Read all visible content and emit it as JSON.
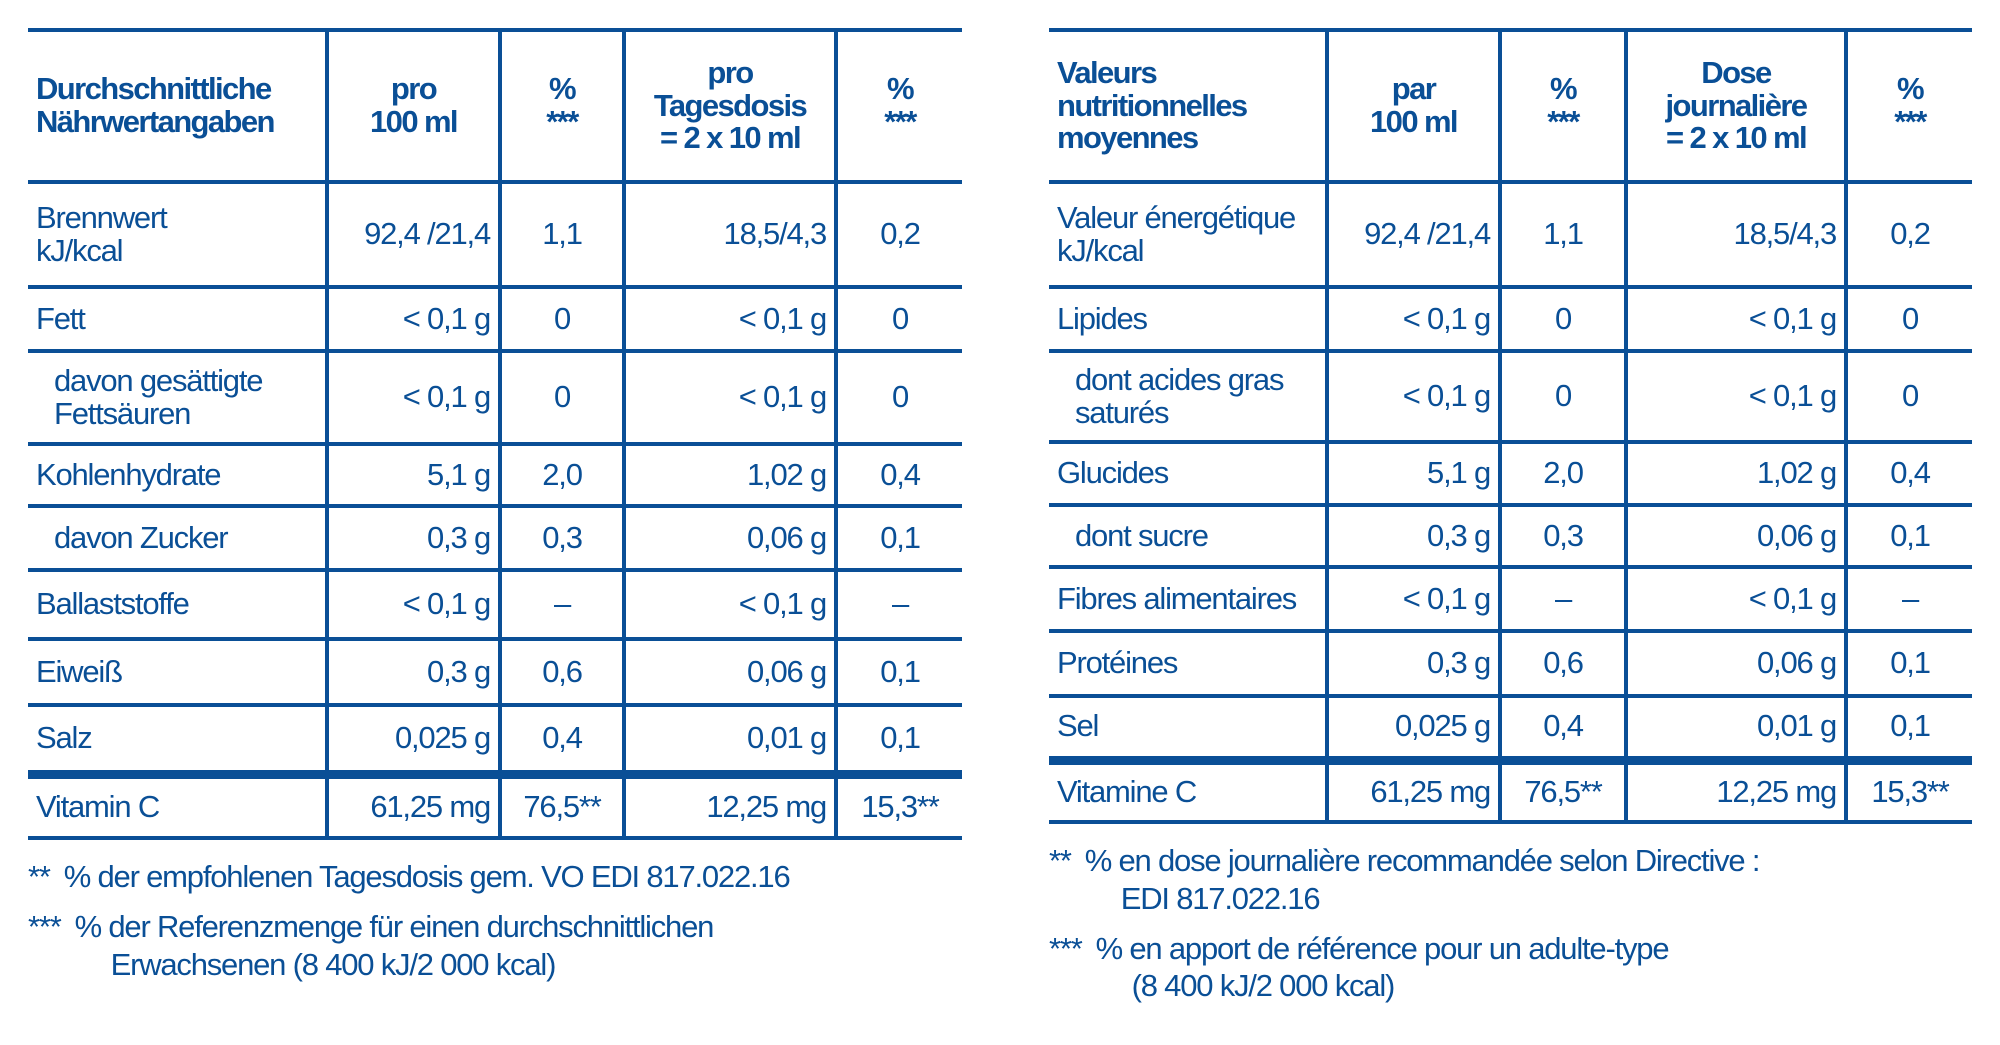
{
  "de": {
    "headers": [
      "Durchschnittliche\nNährwertangaben",
      "pro\n100 ml",
      "%\n***",
      "pro\nTagesdosis\n= 2 x 10 ml",
      "%\n***"
    ],
    "rows": [
      {
        "label": "Brennwert\nkJ/kcal",
        "v1": "92,4 /21,4",
        "p1": "1,1",
        "v2": "18,5/4,3",
        "p2": "0,2"
      },
      {
        "label": "Fett",
        "v1": "< 0,1 g",
        "p1": "0",
        "v2": "< 0,1 g",
        "p2": "0"
      },
      {
        "label": "davon gesättigte\nFettsäuren",
        "indent": true,
        "v1": "< 0,1 g",
        "p1": "0",
        "v2": "< 0,1 g",
        "p2": "0"
      },
      {
        "label": "Kohlenhydrate",
        "v1": "5,1 g",
        "p1": "2,0",
        "v2": "1,02 g",
        "p2": "0,4"
      },
      {
        "label": "davon Zucker",
        "indent": true,
        "v1": "0,3 g",
        "p1": "0,3",
        "v2": "0,06 g",
        "p2": "0,1"
      },
      {
        "label": "Ballaststoffe",
        "v1": "< 0,1 g",
        "p1": "–",
        "v2": "< 0,1 g",
        "p2": "–"
      },
      {
        "label": "Eiweiß",
        "v1": "0,3 g",
        "p1": "0,6",
        "v2": "0,06 g",
        "p2": "0,1"
      },
      {
        "label": "Salz",
        "v1": "0,025 g",
        "p1": "0,4",
        "v2": "0,01 g",
        "p2": "0,1"
      },
      {
        "label": "Vitamin C",
        "vitamin": true,
        "v1": "61,25 mg",
        "p1": "76,5**",
        "v2": "12,25 mg",
        "p2": "15,3**"
      }
    ],
    "notes": [
      {
        "mark": "**",
        "lines": [
          "% der empfohlenen Tagesdosis gem. VO EDI 817.022.16"
        ]
      },
      {
        "mark": "***",
        "lines": [
          "% der Referenzmenge für einen durchschnittlichen",
          "Erwachsenen (8 400 kJ/2 000 kcal)"
        ]
      }
    ]
  },
  "fr": {
    "headers": [
      "Valeurs\nnutritionnelles\nmoyennes",
      "par\n100 ml",
      "%\n***",
      "Dose\njournalière\n= 2 x 10 ml",
      "%\n***"
    ],
    "rows": [
      {
        "label": "Valeur énergétique\nkJ/kcal",
        "v1": "92,4 /21,4",
        "p1": "1,1",
        "v2": "18,5/4,3",
        "p2": "0,2"
      },
      {
        "label": "Lipides",
        "v1": "< 0,1 g",
        "p1": "0",
        "v2": "< 0,1 g",
        "p2": "0"
      },
      {
        "label": "dont acides gras\nsaturés",
        "indent": true,
        "v1": "< 0,1 g",
        "p1": "0",
        "v2": "< 0,1 g",
        "p2": "0"
      },
      {
        "label": "Glucides",
        "v1": "5,1 g",
        "p1": "2,0",
        "v2": "1,02 g",
        "p2": "0,4"
      },
      {
        "label": "dont sucre",
        "indent": true,
        "v1": "0,3 g",
        "p1": "0,3",
        "v2": "0,06 g",
        "p2": "0,1"
      },
      {
        "label": "Fibres alimentaires",
        "v1": "< 0,1 g",
        "p1": "–",
        "v2": "< 0,1 g",
        "p2": "–"
      },
      {
        "label": "Protéines",
        "v1": "0,3 g",
        "p1": "0,6",
        "v2": "0,06 g",
        "p2": "0,1"
      },
      {
        "label": "Sel",
        "v1": "0,025 g",
        "p1": "0,4",
        "v2": "0,01 g",
        "p2": "0,1"
      },
      {
        "label": "Vitamine C",
        "vitamin": true,
        "v1": "61,25 mg",
        "p1": "76,5**",
        "v2": "12,25 mg",
        "p2": "15,3**"
      }
    ],
    "notes": [
      {
        "mark": "**",
        "lines": [
          "% en dose journalière recommandée selon Directive :",
          "EDI 817.022.16"
        ]
      },
      {
        "mark": "***",
        "lines": [
          "% en apport de référence pour un adulte-type",
          "(8 400 kJ/2 000 kcal)"
        ]
      }
    ]
  },
  "colors": {
    "brand_blue": "#0a4f96"
  }
}
